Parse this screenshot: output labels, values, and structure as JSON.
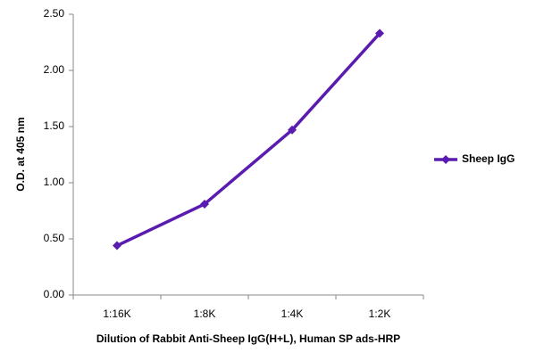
{
  "chart_data": {
    "type": "line",
    "y_label": "O.D. at 405 nm",
    "x_label": "Dilution of Rabbit Anti-Sheep IgG(H+L), Human SP ads-HRP",
    "categories": [
      "1:16K",
      "1:8K",
      "1:4K",
      "1:2K"
    ],
    "series": [
      {
        "name": "Sheep IgG",
        "color": "#5a1bb0",
        "values": [
          0.44,
          0.81,
          1.47,
          2.33
        ]
      }
    ],
    "ylim": [
      0,
      2.5
    ],
    "yticks": [
      {
        "value": 0,
        "label": "0.00"
      },
      {
        "value": 0.5,
        "label": "0.50"
      },
      {
        "value": 1,
        "label": "1.00"
      },
      {
        "value": 1.5,
        "label": "1.50"
      },
      {
        "value": 2,
        "label": "2.00"
      },
      {
        "value": 2.5,
        "label": "2.50"
      }
    ],
    "legend": "right"
  }
}
